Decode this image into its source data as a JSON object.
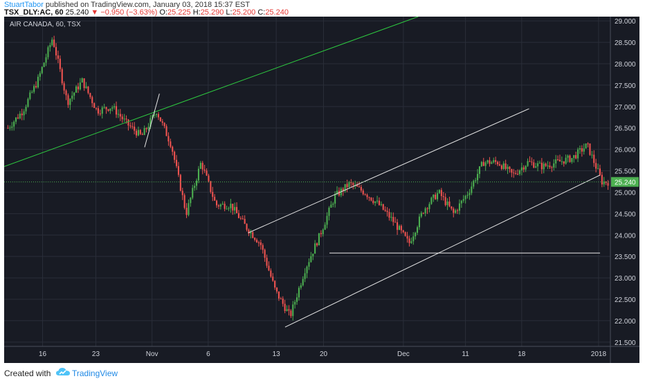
{
  "header": {
    "author": "StuartTabor",
    "published_text": " published on TradingView.com, January 03, 2018 15:37 EST",
    "symbol": "TSX_DLY:AC, 60",
    "last": "25.240",
    "change": "−0.950 (−3.63%)",
    "o_label": "O:",
    "o_val": "25.225",
    "h_label": "H:",
    "h_val": "25.290",
    "l_label": "L:",
    "l_val": "25.200",
    "c_label": "C:",
    "c_val": "25.240"
  },
  "footer": {
    "created_with": "Created with",
    "brand": "TradingView"
  },
  "colors": {
    "background": "#181b24",
    "grid": "#2a2e39",
    "up": "#4caf50",
    "down": "#ef5350",
    "green_trend": "#2ecc40",
    "white_line": "#e8e8e8",
    "price_tag": "#4caf50"
  },
  "chart_data": {
    "type": "candlestick",
    "title": "AIR CANADA, 60, TSX",
    "x_ticks": [
      "16",
      "23",
      "Nov",
      "6",
      "13",
      "20",
      "Dec",
      "11",
      "18",
      "2018"
    ],
    "y_ticks": [
      21.5,
      22.0,
      22.5,
      23.0,
      23.5,
      24.0,
      24.5,
      25.0,
      25.5,
      26.0,
      26.5,
      27.0,
      27.5,
      28.0,
      28.5,
      29.0
    ],
    "ylim": [
      21.4,
      29.1
    ],
    "last_price": 25.24,
    "last_price_label": "25.240",
    "price_path": [
      [
        0,
        26.5
      ],
      [
        1,
        26.9
      ],
      [
        2,
        27.6
      ],
      [
        3,
        28.6
      ],
      [
        4,
        27.1
      ],
      [
        5,
        27.6
      ],
      [
        6,
        26.9
      ],
      [
        7,
        27.0
      ],
      [
        8,
        26.6
      ],
      [
        9,
        26.3
      ],
      [
        10,
        26.9
      ],
      [
        11,
        26.1
      ],
      [
        12,
        24.5
      ],
      [
        13,
        25.7
      ],
      [
        14,
        24.7
      ],
      [
        15,
        24.7
      ],
      [
        16,
        24.2
      ],
      [
        17,
        23.8
      ],
      [
        18,
        22.7
      ],
      [
        19,
        22.1
      ],
      [
        20,
        23.2
      ],
      [
        21,
        24.0
      ],
      [
        22,
        24.9
      ],
      [
        23,
        25.2
      ],
      [
        24,
        25.0
      ],
      [
        25,
        24.7
      ],
      [
        26,
        24.3
      ],
      [
        27,
        23.8
      ],
      [
        28,
        24.6
      ],
      [
        29,
        25.0
      ],
      [
        30,
        24.5
      ],
      [
        31,
        25.0
      ],
      [
        32,
        25.7
      ],
      [
        33,
        25.7
      ],
      [
        34,
        25.4
      ],
      [
        35,
        25.7
      ],
      [
        36,
        25.6
      ],
      [
        37,
        25.7
      ],
      [
        38,
        25.8
      ],
      [
        39,
        26.1
      ],
      [
        40,
        25.24
      ]
    ],
    "trendlines": [
      {
        "name": "green-trendline",
        "color": "green_trend",
        "from": [
          0,
          25.6
        ],
        "to": [
          28,
          29.1
        ]
      },
      {
        "name": "channel-upper",
        "color": "white_line",
        "from": [
          16.5,
          24.05
        ],
        "to": [
          35.5,
          26.95
        ]
      },
      {
        "name": "channel-lower",
        "color": "white_line",
        "from": [
          19,
          21.85
        ],
        "to": [
          40.3,
          25.4
        ]
      },
      {
        "name": "horizontal-support",
        "color": "white_line",
        "from": [
          22,
          23.58
        ],
        "to": [
          40.3,
          23.58
        ]
      },
      {
        "name": "small-trendline",
        "color": "white_line",
        "from": [
          9.5,
          26.05
        ],
        "to": [
          10.5,
          27.3
        ]
      }
    ]
  }
}
